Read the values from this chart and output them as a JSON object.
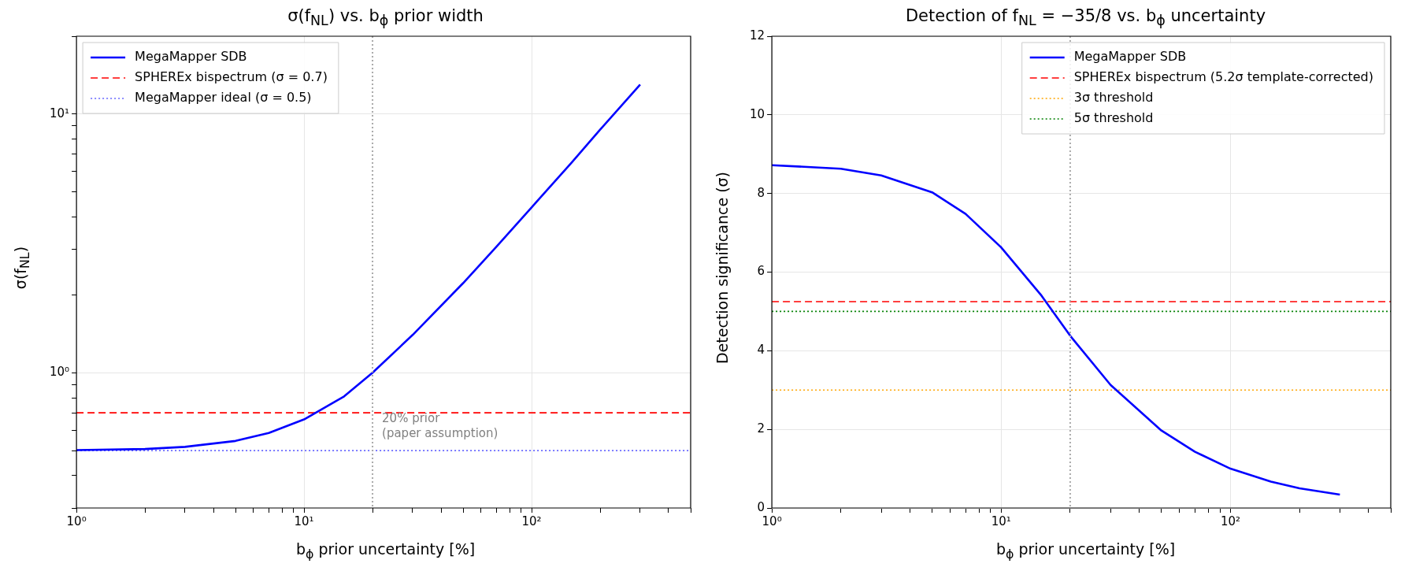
{
  "chart_data": [
    {
      "type": "line",
      "title": "σ(f$_{NL}$) vs. b$_{ϕ}$ prior width",
      "xlabel": "b$_{ϕ}$ prior uncertainty [%]",
      "ylabel": "σ(f$_{NL}$)",
      "log": "xy",
      "grid": true,
      "legend": "top left",
      "marker": "none",
      "xlim": [
        1,
        500
      ],
      "ylim": [
        0.3,
        20
      ],
      "xticks": [
        {
          "value": 1,
          "label": "10⁰"
        },
        {
          "value": 2,
          "label": null
        },
        {
          "value": 3,
          "label": null
        },
        {
          "value": 4,
          "label": null
        },
        {
          "value": 5,
          "label": null
        },
        {
          "value": 6,
          "label": null
        },
        {
          "value": 7,
          "label": null
        },
        {
          "value": 8,
          "label": null
        },
        {
          "value": 9,
          "label": null
        },
        {
          "value": 10,
          "label": "10¹"
        },
        {
          "value": 20,
          "label": null
        },
        {
          "value": 30,
          "label": null
        },
        {
          "value": 40,
          "label": null
        },
        {
          "value": 50,
          "label": null
        },
        {
          "value": 60,
          "label": null
        },
        {
          "value": 70,
          "label": null
        },
        {
          "value": 80,
          "label": null
        },
        {
          "value": 90,
          "label": null
        },
        {
          "value": 100,
          "label": "10²"
        },
        {
          "value": 200,
          "label": null
        },
        {
          "value": 300,
          "label": null
        },
        {
          "value": 400,
          "label": null
        },
        {
          "value": 500,
          "label": null
        }
      ],
      "yticks": [
        {
          "value": 0.3,
          "label": null
        },
        {
          "value": 0.4,
          "label": null
        },
        {
          "value": 0.5,
          "label": null
        },
        {
          "value": 0.6,
          "label": null
        },
        {
          "value": 0.7,
          "label": null
        },
        {
          "value": 0.8,
          "label": null
        },
        {
          "value": 0.9,
          "label": null
        },
        {
          "value": 1,
          "label": "10⁰"
        },
        {
          "value": 2,
          "label": null
        },
        {
          "value": 3,
          "label": null
        },
        {
          "value": 4,
          "label": null
        },
        {
          "value": 5,
          "label": null
        },
        {
          "value": 6,
          "label": null
        },
        {
          "value": 7,
          "label": null
        },
        {
          "value": 8,
          "label": null
        },
        {
          "value": 9,
          "label": null
        },
        {
          "value": 10,
          "label": "10¹"
        },
        {
          "value": 20,
          "label": null
        }
      ],
      "series": [
        {
          "name": "MegaMapper SDB",
          "color": "#0000ff",
          "line_style": "solid",
          "x": [
            1,
            2,
            3,
            5,
            7,
            10,
            15,
            20,
            30,
            50,
            70,
            100,
            150,
            200,
            300
          ],
          "values": [
            0.502,
            0.507,
            0.517,
            0.545,
            0.585,
            0.66,
            0.81,
            1.0,
            1.4,
            2.22,
            3.07,
            4.36,
            6.5,
            8.7,
            13.0
          ]
        },
        {
          "name": "SPHEREx bispectrum (σ = 0.7)",
          "color": "#ff0000",
          "line_style": "dashed",
          "x": [
            1,
            500
          ],
          "values": [
            0.7,
            0.7
          ]
        },
        {
          "name": "MegaMapper ideal (σ = 0.5)",
          "color": "#6666ff",
          "line_style": "dotted",
          "x": [
            1,
            500
          ],
          "values": [
            0.5,
            0.5
          ]
        }
      ],
      "ref_lines": [
        {
          "axis": "x",
          "value": 20,
          "color": "#aaaaaa",
          "line_style": "dotted"
        }
      ],
      "annotations": [
        {
          "text": "20% prior\n(paper assumption)",
          "x": 20,
          "y": 0.62
        }
      ]
    },
    {
      "type": "line",
      "title": "Detection of f$_{NL}$ = −35/8 vs. b$_{ϕ}$ uncertainty",
      "xlabel": "b$_{ϕ}$ prior uncertainty [%]",
      "ylabel": "Detection significance (σ)",
      "log": "x",
      "grid": true,
      "legend": "top right",
      "marker": "none",
      "xlim": [
        1,
        500
      ],
      "ylim": [
        0,
        12
      ],
      "xticks": [
        {
          "value": 1,
          "label": "10⁰"
        },
        {
          "value": 2,
          "label": null
        },
        {
          "value": 3,
          "label": null
        },
        {
          "value": 4,
          "label": null
        },
        {
          "value": 5,
          "label": null
        },
        {
          "value": 6,
          "label": null
        },
        {
          "value": 7,
          "label": null
        },
        {
          "value": 8,
          "label": null
        },
        {
          "value": 9,
          "label": null
        },
        {
          "value": 10,
          "label": "10¹"
        },
        {
          "value": 20,
          "label": null
        },
        {
          "value": 30,
          "label": null
        },
        {
          "value": 40,
          "label": null
        },
        {
          "value": 50,
          "label": null
        },
        {
          "value": 60,
          "label": null
        },
        {
          "value": 70,
          "label": null
        },
        {
          "value": 80,
          "label": null
        },
        {
          "value": 90,
          "label": null
        },
        {
          "value": 100,
          "label": "10²"
        },
        {
          "value": 200,
          "label": null
        },
        {
          "value": 300,
          "label": null
        },
        {
          "value": 400,
          "label": null
        },
        {
          "value": 500,
          "label": null
        }
      ],
      "yticks": [
        0,
        2,
        4,
        6,
        8,
        10,
        12
      ],
      "series": [
        {
          "name": "MegaMapper SDB",
          "color": "#0000ff",
          "line_style": "solid",
          "x": [
            1,
            2,
            3,
            5,
            7,
            10,
            15,
            20,
            30,
            50,
            70,
            100,
            150,
            200,
            300
          ],
          "values": [
            8.72,
            8.63,
            8.46,
            8.03,
            7.48,
            6.63,
            5.4,
            4.38,
            3.13,
            1.97,
            1.43,
            1.0,
            0.67,
            0.5,
            0.34
          ]
        },
        {
          "name": "SPHEREx bispectrum (5.2σ template-corrected)",
          "color": "#ff0000",
          "line_style": "dashed",
          "x": [
            1,
            500
          ],
          "values": [
            5.25,
            5.25
          ]
        },
        {
          "name": "3σ threshold",
          "color": "#ffa500",
          "line_style": "dotted",
          "x": [
            1,
            500
          ],
          "values": [
            3,
            3
          ]
        },
        {
          "name": "5σ threshold",
          "color": "#008000",
          "line_style": "dotted",
          "x": [
            1,
            500
          ],
          "values": [
            5,
            5
          ]
        }
      ],
      "ref_lines": [
        {
          "axis": "x",
          "value": 20,
          "color": "#aaaaaa",
          "line_style": "dotted"
        }
      ]
    }
  ]
}
